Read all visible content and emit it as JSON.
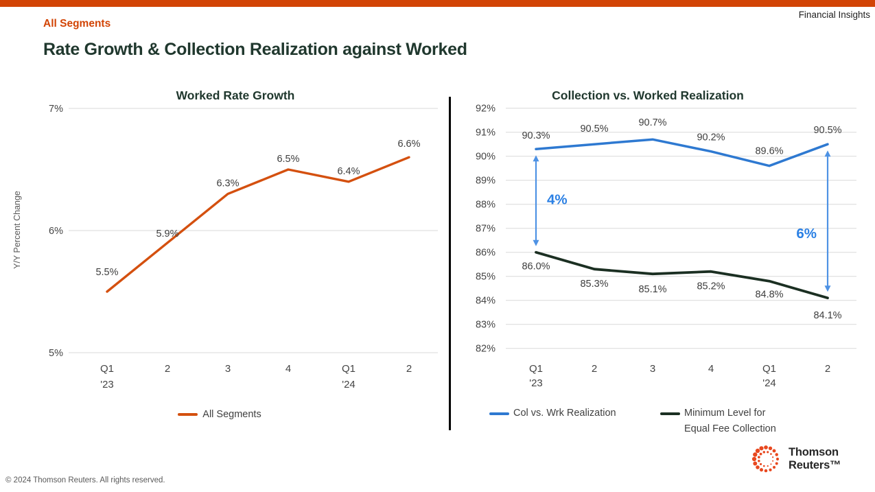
{
  "page": {
    "brand_label": "Financial Insights",
    "eyebrow": "All Segments",
    "title": "Rate Growth & Collection Realization against Worked",
    "footer": "© 2024 Thomson Reuters. All rights reserved.",
    "logo": {
      "line1": "Thomson",
      "line2": "Reuters™"
    }
  },
  "colors": {
    "accent_orange": "#D24405",
    "title_green": "#20382E",
    "text_dark": "#1F1F1F",
    "axis_text": "#444444",
    "label_text": "#3D3D3D",
    "gridline": "#D9D9D9",
    "arrow_blue": "#4E92E4",
    "annotation_blue": "#2B80E4",
    "divider_black": "#000000",
    "footer_gray": "#595959",
    "logo_orange": "#E8481F"
  },
  "chart_data": [
    {
      "type": "line",
      "title": "Worked Rate Growth",
      "ylabel": "Y/Y Percent Change",
      "categories": [
        [
          "Q1",
          "'23"
        ],
        [
          "2"
        ],
        [
          "3"
        ],
        [
          "4"
        ],
        [
          "Q1",
          "'24"
        ],
        [
          "2"
        ]
      ],
      "ylim": [
        5,
        7
      ],
      "yticks": [
        {
          "v": 7,
          "label": "7%"
        },
        {
          "v": 6,
          "label": "6%"
        },
        {
          "v": 5,
          "label": "5%"
        }
      ],
      "grid": "horizontal",
      "legend_position": "bottom",
      "series": [
        {
          "name": "All Segments",
          "color": "#D4500F",
          "values": [
            5.5,
            5.9,
            6.3,
            6.5,
            6.4,
            6.6
          ],
          "labels": [
            "5.5%",
            "5.9%",
            "6.3%",
            "6.5%",
            "6.4%",
            "6.6%"
          ]
        }
      ]
    },
    {
      "type": "line",
      "title": "Collection vs. Worked Realization",
      "ylabel": "",
      "categories": [
        [
          "Q1",
          "'23"
        ],
        [
          "2"
        ],
        [
          "3"
        ],
        [
          "4"
        ],
        [
          "Q1",
          "'24"
        ],
        [
          "2"
        ]
      ],
      "ylim": [
        82,
        92
      ],
      "yticks": [
        {
          "v": 92,
          "label": "92%"
        },
        {
          "v": 91,
          "label": "91%"
        },
        {
          "v": 90,
          "label": "90%"
        },
        {
          "v": 89,
          "label": "89%"
        },
        {
          "v": 88,
          "label": "88%"
        },
        {
          "v": 87,
          "label": "87%"
        },
        {
          "v": 86,
          "label": "86%"
        },
        {
          "v": 85,
          "label": "85%"
        },
        {
          "v": 84,
          "label": "84%"
        },
        {
          "v": 83,
          "label": "83%"
        },
        {
          "v": 82,
          "label": "82%"
        }
      ],
      "grid": "horizontal",
      "legend_position": "bottom",
      "series": [
        {
          "name": "Col vs. Wrk Realization",
          "color": "#2E79D1",
          "values": [
            90.3,
            90.5,
            90.7,
            90.2,
            89.6,
            90.5
          ],
          "labels": [
            "90.3%",
            "90.5%",
            "90.7%",
            "90.2%",
            "89.6%",
            "90.5%"
          ]
        },
        {
          "name": "Minimum Level for Equal Fee Collection",
          "name_lines": [
            "Minimum Level for",
            "Equal Fee Collection"
          ],
          "color": "#1B2F22",
          "values": [
            86.0,
            85.3,
            85.1,
            85.2,
            84.8,
            84.1
          ],
          "labels": [
            "86.0%",
            "85.3%",
            "85.1%",
            "85.2%",
            "84.8%",
            "84.1%"
          ]
        }
      ],
      "annotations": [
        {
          "label": "4%",
          "x_index": 0,
          "from_value": 90.3,
          "to_value": 86.0
        },
        {
          "label": "6%",
          "x_index": 5,
          "from_value": 90.5,
          "to_value": 84.1
        }
      ]
    }
  ]
}
